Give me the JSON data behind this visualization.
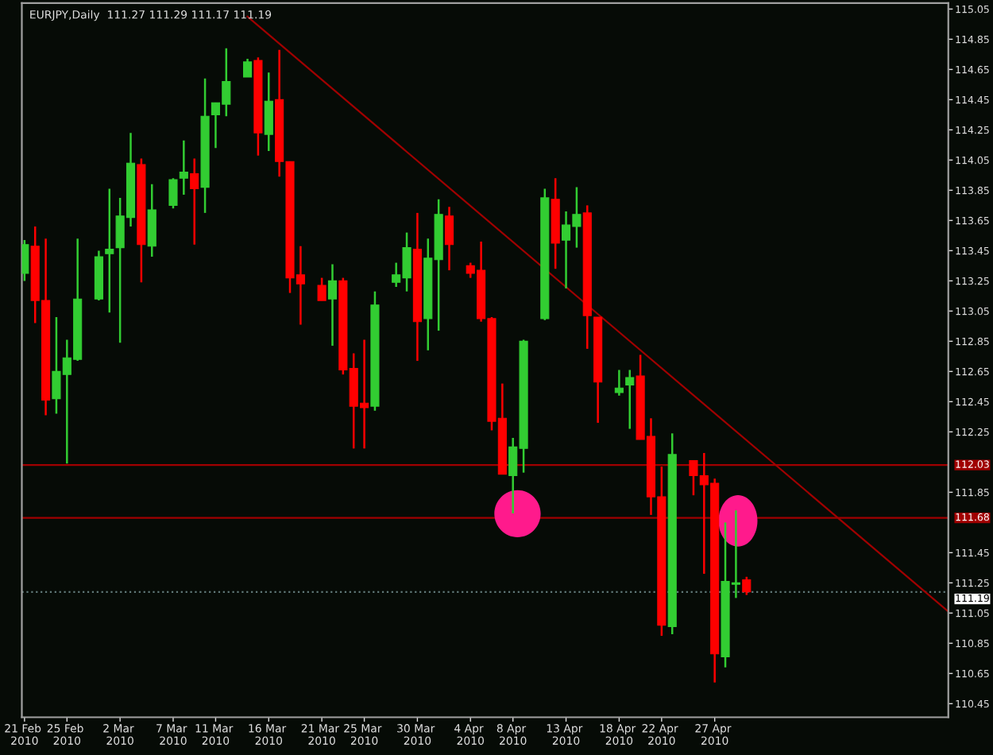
{
  "chart_data": {
    "type": "candlestick",
    "title": "EURJPY,Daily  111.27 111.29 111.17 111.19",
    "x": [
      "2010-02-21",
      "2010-02-22",
      "2010-02-23",
      "2010-02-24",
      "2010-02-25",
      "2010-02-26",
      "2010-02-28",
      "2010-03-01",
      "2010-03-02",
      "2010-03-03",
      "2010-03-04",
      "2010-03-05",
      "2010-03-07",
      "2010-03-08",
      "2010-03-09",
      "2010-03-10",
      "2010-03-11",
      "2010-03-12",
      "2010-03-14",
      "2010-03-15",
      "2010-03-16",
      "2010-03-17",
      "2010-03-18",
      "2010-03-19",
      "2010-03-21",
      "2010-03-22",
      "2010-03-23",
      "2010-03-24",
      "2010-03-25",
      "2010-03-26",
      "2010-03-28",
      "2010-03-29",
      "2010-03-30",
      "2010-03-31",
      "2010-04-01",
      "2010-04-02",
      "2010-04-04",
      "2010-04-05",
      "2010-04-06",
      "2010-04-07",
      "2010-04-08",
      "2010-04-09",
      "2010-04-11",
      "2010-04-12",
      "2010-04-13",
      "2010-04-14",
      "2010-04-15",
      "2010-04-16",
      "2010-04-18",
      "2010-04-19",
      "2010-04-20",
      "2010-04-21",
      "2010-04-22",
      "2010-04-23",
      "2010-04-25",
      "2010-04-26",
      "2010-04-27",
      "2010-04-28",
      "2010-04-29",
      "2010-04-30"
    ],
    "ohlc": [
      [
        113.3,
        113.52,
        113.25,
        113.49
      ],
      [
        113.48,
        113.61,
        112.97,
        113.12
      ],
      [
        113.12,
        113.53,
        112.36,
        112.46
      ],
      [
        112.47,
        113.01,
        112.37,
        112.65
      ],
      [
        112.63,
        112.86,
        112.04,
        112.74
      ],
      [
        112.73,
        113.53,
        112.72,
        113.13
      ],
      [
        113.13,
        113.45,
        113.12,
        113.41
      ],
      [
        113.43,
        113.86,
        113.04,
        113.46
      ],
      [
        113.47,
        113.8,
        112.84,
        113.68
      ],
      [
        113.67,
        114.23,
        113.61,
        114.03
      ],
      [
        114.02,
        114.06,
        113.24,
        113.49
      ],
      [
        113.48,
        113.89,
        113.41,
        113.72
      ],
      [
        113.75,
        113.93,
        113.73,
        113.92
      ],
      [
        113.93,
        114.18,
        113.82,
        113.97
      ],
      [
        113.96,
        114.06,
        113.49,
        113.86
      ],
      [
        113.87,
        114.59,
        113.7,
        114.34
      ],
      [
        114.35,
        114.43,
        114.13,
        114.43
      ],
      [
        114.42,
        114.79,
        114.34,
        114.57
      ],
      [
        114.6,
        114.72,
        114.6,
        114.7
      ],
      [
        114.71,
        114.73,
        114.08,
        114.23
      ],
      [
        114.22,
        114.63,
        114.11,
        114.44
      ],
      [
        114.45,
        114.78,
        113.94,
        114.04
      ],
      [
        114.04,
        114.04,
        113.17,
        113.27
      ],
      [
        113.29,
        113.48,
        112.96,
        113.23
      ],
      [
        113.22,
        113.27,
        113.12,
        113.12
      ],
      [
        113.13,
        113.36,
        112.82,
        113.25
      ],
      [
        113.25,
        113.27,
        112.63,
        112.66
      ],
      [
        112.67,
        112.77,
        112.14,
        112.42
      ],
      [
        112.44,
        112.86,
        112.14,
        112.41
      ],
      [
        112.42,
        113.18,
        112.39,
        113.09
      ],
      [
        113.24,
        113.37,
        113.21,
        113.29
      ],
      [
        113.27,
        113.57,
        113.18,
        113.47
      ],
      [
        113.46,
        113.7,
        112.72,
        112.98
      ],
      [
        113.0,
        113.53,
        112.79,
        113.4
      ],
      [
        113.39,
        113.79,
        112.92,
        113.69
      ],
      [
        113.68,
        113.74,
        113.32,
        113.49
      ],
      [
        113.35,
        113.37,
        113.27,
        113.3
      ],
      [
        113.32,
        113.51,
        112.98,
        113.0
      ],
      [
        113.0,
        113.01,
        112.26,
        112.32
      ],
      [
        112.34,
        112.57,
        111.97,
        111.97
      ],
      [
        111.96,
        112.21,
        111.71,
        112.15
      ],
      [
        112.14,
        112.86,
        111.98,
        112.85
      ],
      [
        113.0,
        113.86,
        112.99,
        113.8
      ],
      [
        113.79,
        113.93,
        113.33,
        113.5
      ],
      [
        113.52,
        113.71,
        113.2,
        113.62
      ],
      [
        113.61,
        113.87,
        113.47,
        113.69
      ],
      [
        113.7,
        113.75,
        112.8,
        113.02
      ],
      [
        113.01,
        113.01,
        112.31,
        112.58
      ],
      [
        112.51,
        112.66,
        112.49,
        112.54
      ],
      [
        112.56,
        112.66,
        112.27,
        112.61
      ],
      [
        112.62,
        112.76,
        112.2,
        112.2
      ],
      [
        112.22,
        112.34,
        111.7,
        111.82
      ],
      [
        111.82,
        112.02,
        110.9,
        110.97
      ],
      [
        110.96,
        112.24,
        110.91,
        112.1
      ],
      [
        112.06,
        112.06,
        111.83,
        111.96
      ],
      [
        111.96,
        112.11,
        111.31,
        111.9
      ],
      [
        111.91,
        111.94,
        110.59,
        110.78
      ],
      [
        110.76,
        111.65,
        110.69,
        111.26
      ],
      [
        111.24,
        111.73,
        111.15,
        111.25
      ],
      [
        111.27,
        111.29,
        111.17,
        111.19
      ]
    ],
    "colors": [
      "#32cd32",
      "#ff0000",
      "#ff0000",
      "#32cd32",
      "#32cd32",
      "#32cd32",
      "#32cd32",
      "#32cd32",
      "#32cd32",
      "#32cd32",
      "#ff0000",
      "#32cd32",
      "#32cd32",
      "#32cd32",
      "#ff0000",
      "#32cd32",
      "#32cd32",
      "#32cd32",
      "#32cd32",
      "#ff0000",
      "#32cd32",
      "#ff0000",
      "#ff0000",
      "#ff0000",
      "#ff0000",
      "#32cd32",
      "#ff0000",
      "#ff0000",
      "#ff0000",
      "#32cd32",
      "#32cd32",
      "#32cd32",
      "#ff0000",
      "#32cd32",
      "#32cd32",
      "#ff0000",
      "#ff0000",
      "#ff0000",
      "#ff0000",
      "#ff0000",
      "#32cd32",
      "#32cd32",
      "#32cd32",
      "#ff0000",
      "#32cd32",
      "#32cd32",
      "#ff0000",
      "#ff0000",
      "#32cd32",
      "#32cd32",
      "#ff0000",
      "#ff0000",
      "#ff0000",
      "#32cd32",
      "#ff0000",
      "#ff0000",
      "#ff0000",
      "#32cd32",
      "#32cd32",
      "#ff0000"
    ],
    "series": [
      {
        "type": "line",
        "color": "#a00000",
        "x": [
          "2010-03-14",
          "2010-05-19"
        ],
        "values": [
          115.0,
          111.06
        ]
      }
    ],
    "ref_lines": [
      {
        "axis": "y",
        "value": 112.03,
        "label": "112.03",
        "color": "#a00000",
        "line_style": "solid"
      },
      {
        "axis": "y",
        "value": 111.68,
        "label": "111.68",
        "color": "#a00000",
        "line_style": "solid"
      },
      {
        "axis": "y",
        "value": 111.19,
        "label": "111.19",
        "color": "#607878",
        "line_style": "dotted"
      }
    ],
    "xlim": [
      "2010-02-20T18:00",
      "2010-05-19"
    ],
    "xticks": [
      {
        "value": "2010-02-21",
        "label": "21 Feb 2010"
      },
      {
        "value": "2010-02-25",
        "label": "25 Feb 2010"
      },
      {
        "value": "2010-03-02",
        "label": "2 Mar 2010"
      },
      {
        "value": "2010-03-07",
        "label": "7 Mar 2010"
      },
      {
        "value": "2010-03-11",
        "label": "11 Mar 2010"
      },
      {
        "value": "2010-03-16",
        "label": "16 Mar 2010"
      },
      {
        "value": "2010-03-21",
        "label": "21 Mar 2010"
      },
      {
        "value": "2010-03-25",
        "label": "25 Mar 2010"
      },
      {
        "value": "2010-03-30",
        "label": "30 Mar 2010"
      },
      {
        "value": "2010-04-04",
        "label": "4 Apr 2010"
      },
      {
        "value": "2010-04-08",
        "label": "8 Apr 2010"
      },
      {
        "value": "2010-04-13",
        "label": "13 Apr 2010"
      },
      {
        "value": "2010-04-18",
        "label": "18 Apr 2010"
      },
      {
        "value": "2010-04-22",
        "label": "22 Apr 2010"
      },
      {
        "value": "2010-04-27",
        "label": "27 Apr 2010"
      }
    ],
    "ylim": [
      110.36,
      115.09
    ],
    "yticks": [
      {
        "value": 110.45,
        "label": "110.45"
      },
      110.65,
      {
        "value": 110.85,
        "label": "110.85"
      },
      111.05,
      111.25,
      111.45,
      {
        "value": 111.85,
        "label": "111.85"
      },
      112.25,
      112.45,
      112.65,
      112.85,
      113.05,
      113.25,
      113.45,
      113.65,
      113.85,
      114.05,
      114.25,
      114.45,
      114.65,
      114.85,
      115.05
    ],
    "grid": false,
    "legend": false
  }
}
